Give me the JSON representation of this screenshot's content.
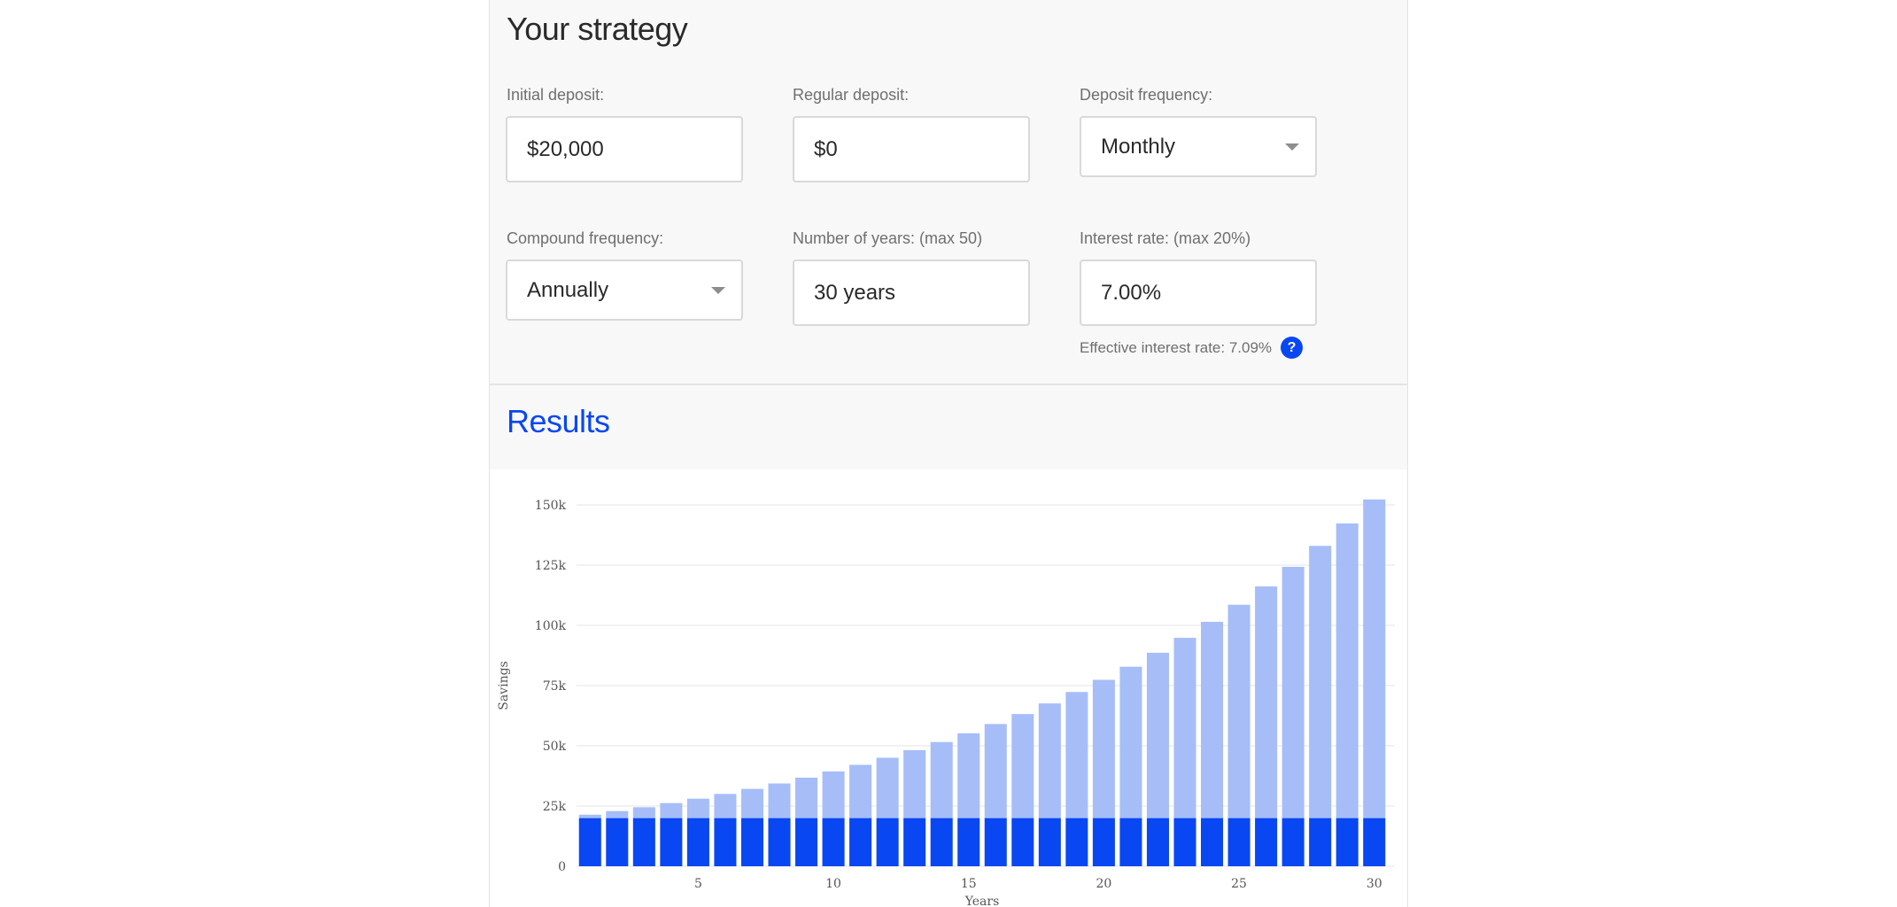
{
  "strategy": {
    "title": "Your strategy",
    "initial_deposit": {
      "label": "Initial deposit:",
      "value": "$20,000"
    },
    "regular_deposit": {
      "label": "Regular deposit:",
      "value": "$0"
    },
    "deposit_frequency": {
      "label": "Deposit frequency:",
      "value": "Monthly"
    },
    "compound_frequency": {
      "label": "Compound frequency:",
      "value": "Annually"
    },
    "years": {
      "label": "Number of years: (max 50)",
      "value": "30 years"
    },
    "interest_rate": {
      "label": "Interest rate: (max 20%)",
      "value": "7.00%"
    },
    "effective_rate_text": "Effective interest rate: 7.09%",
    "help_icon": "?"
  },
  "results": {
    "title": "Results"
  },
  "colors": {
    "principal": "#0847f2",
    "interest": "#a6bdf8",
    "accent": "#0847f2"
  },
  "chart_data": {
    "type": "bar",
    "stacked": true,
    "xlabel": "Years",
    "ylabel": "Savings",
    "ylim": [
      0,
      150000
    ],
    "yticks": [
      0,
      25000,
      50000,
      75000,
      100000,
      125000,
      150000
    ],
    "ytick_labels": [
      "0",
      "25k",
      "50k",
      "75k",
      "100k",
      "125k",
      "150k"
    ],
    "xticks": [
      5,
      10,
      15,
      20,
      25,
      30
    ],
    "x": [
      1,
      2,
      3,
      4,
      5,
      6,
      7,
      8,
      9,
      10,
      11,
      12,
      13,
      14,
      15,
      16,
      17,
      18,
      19,
      20,
      21,
      22,
      23,
      24,
      25,
      26,
      27,
      28,
      29,
      30
    ],
    "grid": true,
    "series": [
      {
        "values": [
          20000,
          20000,
          20000,
          20000,
          20000,
          20000,
          20000,
          20000,
          20000,
          20000,
          20000,
          20000,
          20000,
          20000,
          20000,
          20000,
          20000,
          20000,
          20000,
          20000,
          20000,
          20000,
          20000,
          20000,
          20000,
          20000,
          20000,
          20000,
          20000,
          20000
        ]
      },
      {
        "values": [
          1400,
          2898,
          4501,
          6216,
          8051,
          10015,
          12116,
          14364,
          16769,
          19343,
          22097,
          25044,
          28197,
          31571,
          35181,
          39044,
          43177,
          47599,
          52331,
          57394,
          62812,
          68609,
          74812,
          81449,
          88550,
          96149,
          104279,
          112979,
          122288,
          132249
        ]
      }
    ]
  }
}
